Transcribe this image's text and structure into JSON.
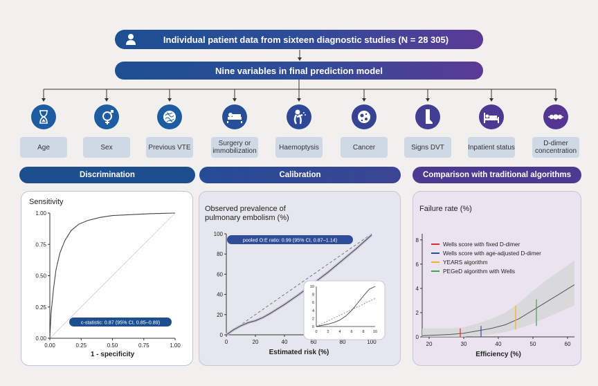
{
  "header": {
    "title": "Individual patient data from sixteen diagnostic studies (N = 28 305)"
  },
  "model": {
    "title": "Nine variables in final prediction model"
  },
  "variables": [
    {
      "label": "Age",
      "icon": "hourglass-icon",
      "color": "#1d5ca0"
    },
    {
      "label": "Sex",
      "icon": "gender-icon",
      "color": "#1d5ca0"
    },
    {
      "label": "Previous VTE",
      "icon": "clot-icon",
      "color": "#1d5ca0"
    },
    {
      "label": "Surgery or immobilization",
      "icon": "bed-icon",
      "color": "#264f98"
    },
    {
      "label": "Haemoptysis",
      "icon": "coughing-icon",
      "color": "#2d4896"
    },
    {
      "label": "Cancer",
      "icon": "cancer-cell-icon",
      "color": "#364393"
    },
    {
      "label": "Signs DVT",
      "icon": "leg-icon",
      "color": "#423e93"
    },
    {
      "label": "Inpatient status",
      "icon": "patient-bed-icon",
      "color": "#4b3a92"
    },
    {
      "label": "D-dimer concentration",
      "icon": "d-dimer-icon",
      "color": "#543692"
    }
  ],
  "sections": {
    "discrimination": "Discrimination",
    "calibration": "Calibration",
    "comparison": "Comparison with traditional algorithms"
  },
  "chart_data": [
    {
      "type": "line",
      "title": "Sensitivity",
      "xlabel": "1 - specificity",
      "ylabel": "Sensitivity",
      "xlim": [
        0,
        1
      ],
      "ylim": [
        0,
        1
      ],
      "xticks": [
        "0.00",
        "0.25",
        "0.50",
        "0.75",
        "1.00"
      ],
      "yticks": [
        "0.00",
        "0.25",
        "0.50",
        "0.75",
        "1.00"
      ],
      "x": [
        0,
        0.01,
        0.03,
        0.05,
        0.08,
        0.12,
        0.17,
        0.23,
        0.3,
        0.4,
        0.5,
        0.6,
        0.7,
        0.8,
        0.9,
        1.0
      ],
      "y": [
        0,
        0.2,
        0.4,
        0.55,
        0.68,
        0.78,
        0.86,
        0.91,
        0.94,
        0.965,
        0.98,
        0.985,
        0.99,
        0.995,
        0.998,
        1.0
      ],
      "annotation": "c-statistic: 0.87 (95% CI, 0.85–0.89)"
    },
    {
      "type": "line",
      "title": "Observed prevalence of pulmonary embolism (%)",
      "xlabel": "Estimated risk (%)",
      "xlim": [
        0,
        100
      ],
      "ylim": [
        0,
        100
      ],
      "xticks": [
        "0",
        "20",
        "40",
        "60",
        "80",
        "100"
      ],
      "yticks": [
        "0",
        "20",
        "40",
        "60",
        "80",
        "100"
      ],
      "x": [
        0,
        5,
        10,
        15,
        20,
        25,
        30,
        40,
        50,
        60,
        70,
        80,
        90,
        100
      ],
      "y": [
        0,
        5,
        9,
        12,
        14,
        17,
        21,
        30,
        40,
        51,
        62,
        74,
        86,
        99
      ],
      "annotation": "pooled O:E ratio: 0.99 (95% CI, 0.87–1.14)",
      "inset": {
        "xticks": [
          "0",
          "2",
          "4",
          "6",
          "8",
          "10"
        ],
        "yticks": [
          "0",
          "2",
          "4",
          "6",
          "8",
          "10"
        ],
        "x": [
          0,
          1,
          2,
          3,
          4,
          5,
          6,
          7,
          8,
          9,
          10
        ],
        "y": [
          0,
          0.3,
          0.6,
          1.0,
          1.6,
          2.6,
          4.0,
          5.8,
          7.6,
          9.3,
          10.4
        ]
      }
    },
    {
      "type": "line",
      "title": "Failure rate (%)",
      "xlabel": "Efficiency (%)",
      "xlim": [
        18,
        62
      ],
      "ylim": [
        0,
        8.5
      ],
      "xticks": [
        "20",
        "30",
        "40",
        "50",
        "60"
      ],
      "yticks": [
        "0",
        "2",
        "4",
        "6",
        "8"
      ],
      "x": [
        18,
        22,
        26,
        30,
        34,
        38,
        42,
        46,
        50,
        54,
        58,
        62
      ],
      "y": [
        0.1,
        0.15,
        0.2,
        0.3,
        0.5,
        0.7,
        1.0,
        1.5,
        2.2,
        2.9,
        3.6,
        4.3
      ],
      "band_upper": [
        0.7,
        0.7,
        0.7,
        0.8,
        1.1,
        1.5,
        2.0,
        2.8,
        3.8,
        4.7,
        5.5,
        6.3
      ],
      "band_lower": [
        0,
        0,
        0,
        0,
        0.1,
        0.2,
        0.4,
        0.7,
        1.1,
        1.6,
        2.1,
        2.6
      ],
      "series": [
        {
          "name": "Wells score with fixed D-dimer",
          "color": "#d22f2f",
          "x": 29,
          "y": 0.2,
          "lo": 0,
          "hi": 0.7
        },
        {
          "name": "Wells score with age-adjusted D-dimer",
          "color": "#2a4fa0",
          "x": 35,
          "y": 0.4,
          "lo": 0,
          "hi": 0.9
        },
        {
          "name": "YEARS algorithm",
          "color": "#e9b52a",
          "x": 45,
          "y": 1.3,
          "lo": 0.6,
          "hi": 2.6
        },
        {
          "name": "PEGeD algorithm with Wells",
          "color": "#3aa651",
          "x": 51,
          "y": 1.9,
          "lo": 0.9,
          "hi": 3.1
        }
      ]
    }
  ]
}
